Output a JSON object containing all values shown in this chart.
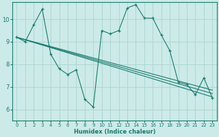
{
  "background_color": "#cceae8",
  "grid_color": "#aad4d0",
  "line_color": "#1a7a6e",
  "xlabel": "Humidex (Indice chaleur)",
  "xlim": [
    -0.5,
    23.5
  ],
  "ylim": [
    5.5,
    10.75
  ],
  "yticks": [
    6,
    7,
    8,
    9,
    10
  ],
  "xticks": [
    0,
    1,
    2,
    3,
    4,
    5,
    6,
    7,
    8,
    9,
    10,
    11,
    12,
    13,
    14,
    15,
    16,
    17,
    18,
    19,
    20,
    21,
    22,
    23
  ],
  "line1_x": [
    0,
    1,
    2,
    3,
    4,
    5,
    6,
    7,
    8,
    9,
    10,
    11,
    12,
    13,
    14,
    15,
    16,
    17,
    18,
    19,
    20,
    21,
    22,
    23
  ],
  "line1_y": [
    9.2,
    9.0,
    9.75,
    10.45,
    8.45,
    7.8,
    7.55,
    7.75,
    6.45,
    6.1,
    9.5,
    9.35,
    9.5,
    10.5,
    10.65,
    10.05,
    10.05,
    9.3,
    8.6,
    7.2,
    7.1,
    6.65,
    7.4,
    6.5
  ],
  "line2_x": [
    0,
    23
  ],
  "line2_y": [
    9.2,
    6.55
  ],
  "line3_x": [
    0,
    23
  ],
  "line3_y": [
    9.2,
    6.7
  ],
  "line4_x": [
    0,
    23
  ],
  "line4_y": [
    9.2,
    6.85
  ]
}
